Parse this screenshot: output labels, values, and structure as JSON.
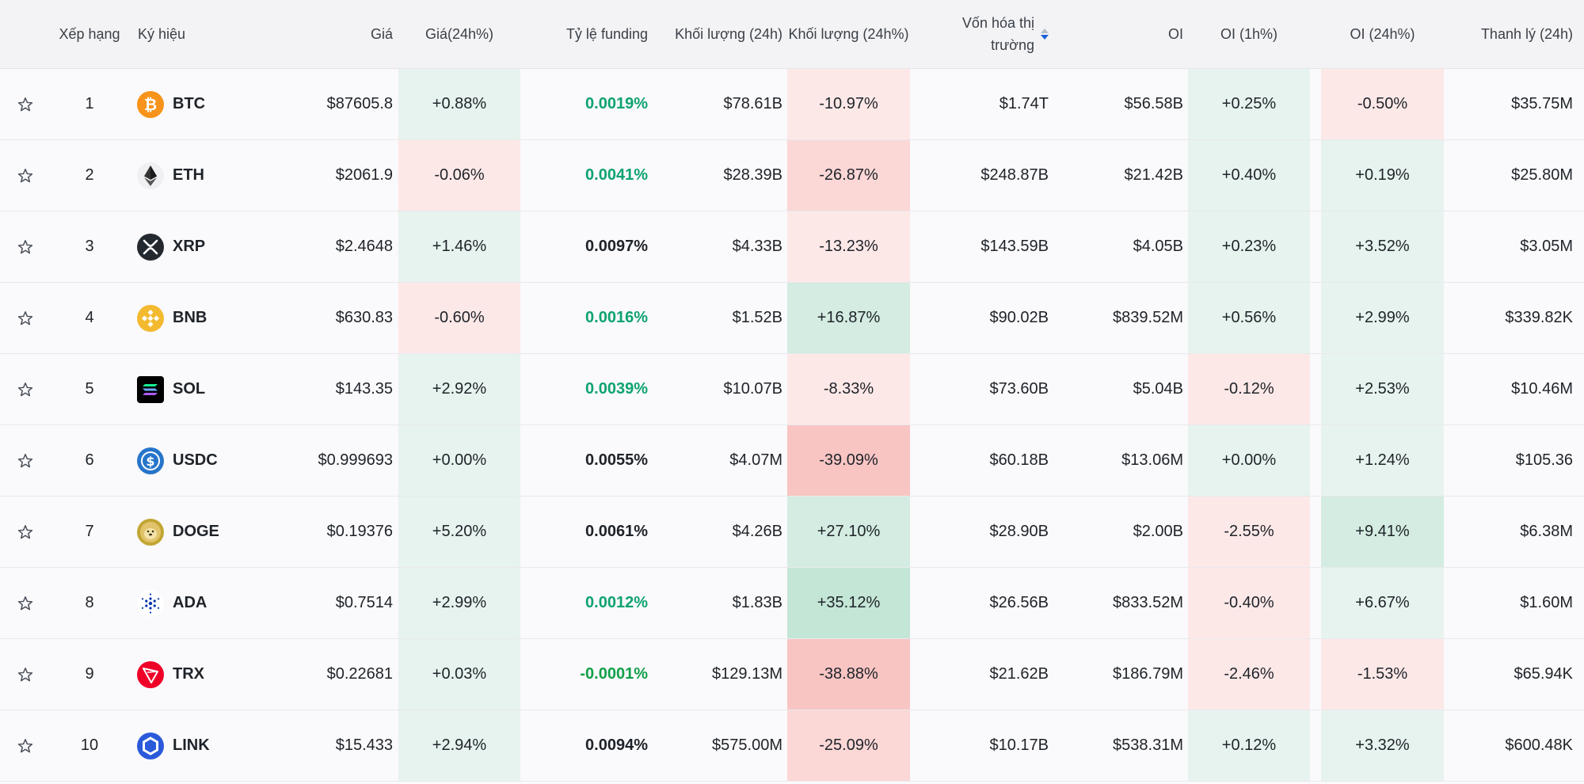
{
  "header": {
    "rank": "Xếp hạng",
    "symbol": "Ký hiệu",
    "price": "Giá",
    "price_change": "Giá(24h%)",
    "funding": "Tỷ lệ funding",
    "volume": "Khối lượng (24h)",
    "volume_change": "Khối lượng (24h%)",
    "market_cap_line1": "Vốn hóa thị",
    "market_cap_line2": "trường",
    "oi": "OI",
    "oi_1h": "OI (1h%)",
    "oi_24h": "OI (24h%)",
    "liquidation": "Thanh lý (24h)"
  },
  "colors": {
    "green_light": "#e7f3ee",
    "green_mid": "#d4ece1",
    "green_strong": "#c4e6d6",
    "red_light": "#fde8e8",
    "red_mid": "#fbd7d6",
    "red_strong": "#f8c5c3",
    "funding_green": "#0ea371",
    "sort_active": "#1c60d8"
  },
  "rows": [
    {
      "rank": "1",
      "symbol": "BTC",
      "icon": "bitcoin-icon",
      "price": "$87605.8",
      "price_change": "+0.88%",
      "price_change_tone": "green_light",
      "funding": "0.0019%",
      "funding_tone": "green",
      "volume": "$78.61B",
      "volume_change": "-10.97%",
      "volume_change_tone": "red_light",
      "market_cap": "$1.74T",
      "oi": "$56.58B",
      "oi_1h": "+0.25%",
      "oi_1h_tone": "green_light",
      "oi_24h": "-0.50%",
      "oi_24h_tone": "red_light",
      "liquidation": "$35.75M"
    },
    {
      "rank": "2",
      "symbol": "ETH",
      "icon": "ethereum-icon",
      "price": "$2061.9",
      "price_change": "-0.06%",
      "price_change_tone": "red_light",
      "funding": "0.0041%",
      "funding_tone": "green",
      "volume": "$28.39B",
      "volume_change": "-26.87%",
      "volume_change_tone": "red_mid",
      "market_cap": "$248.87B",
      "oi": "$21.42B",
      "oi_1h": "+0.40%",
      "oi_1h_tone": "green_light",
      "oi_24h": "+0.19%",
      "oi_24h_tone": "green_light",
      "liquidation": "$25.80M"
    },
    {
      "rank": "3",
      "symbol": "XRP",
      "icon": "xrp-icon",
      "price": "$2.4648",
      "price_change": "+1.46%",
      "price_change_tone": "green_light",
      "funding": "0.0097%",
      "funding_tone": "dark",
      "volume": "$4.33B",
      "volume_change": "-13.23%",
      "volume_change_tone": "red_light",
      "market_cap": "$143.59B",
      "oi": "$4.05B",
      "oi_1h": "+0.23%",
      "oi_1h_tone": "green_light",
      "oi_24h": "+3.52%",
      "oi_24h_tone": "green_light",
      "liquidation": "$3.05M"
    },
    {
      "rank": "4",
      "symbol": "BNB",
      "icon": "bnb-icon",
      "price": "$630.83",
      "price_change": "-0.60%",
      "price_change_tone": "red_light",
      "funding": "0.0016%",
      "funding_tone": "green",
      "volume": "$1.52B",
      "volume_change": "+16.87%",
      "volume_change_tone": "green_mid",
      "market_cap": "$90.02B",
      "oi": "$839.52M",
      "oi_1h": "+0.56%",
      "oi_1h_tone": "green_light",
      "oi_24h": "+2.99%",
      "oi_24h_tone": "green_light",
      "liquidation": "$339.82K"
    },
    {
      "rank": "5",
      "symbol": "SOL",
      "icon": "solana-icon",
      "price": "$143.35",
      "price_change": "+2.92%",
      "price_change_tone": "green_light",
      "funding": "0.0039%",
      "funding_tone": "green",
      "volume": "$10.07B",
      "volume_change": "-8.33%",
      "volume_change_tone": "red_light",
      "market_cap": "$73.60B",
      "oi": "$5.04B",
      "oi_1h": "-0.12%",
      "oi_1h_tone": "red_light",
      "oi_24h": "+2.53%",
      "oi_24h_tone": "green_light",
      "liquidation": "$10.46M"
    },
    {
      "rank": "6",
      "symbol": "USDC",
      "icon": "usdc-icon",
      "price": "$0.999693",
      "price_change": "+0.00%",
      "price_change_tone": "green_light",
      "funding": "0.0055%",
      "funding_tone": "dark",
      "volume": "$4.07M",
      "volume_change": "-39.09%",
      "volume_change_tone": "red_strong",
      "market_cap": "$60.18B",
      "oi": "$13.06M",
      "oi_1h": "+0.00%",
      "oi_1h_tone": "green_light",
      "oi_24h": "+1.24%",
      "oi_24h_tone": "green_light",
      "liquidation": "$105.36"
    },
    {
      "rank": "7",
      "symbol": "DOGE",
      "icon": "dogecoin-icon",
      "price": "$0.19376",
      "price_change": "+5.20%",
      "price_change_tone": "green_light",
      "funding": "0.0061%",
      "funding_tone": "dark",
      "volume": "$4.26B",
      "volume_change": "+27.10%",
      "volume_change_tone": "green_mid",
      "market_cap": "$28.90B",
      "oi": "$2.00B",
      "oi_1h": "-2.55%",
      "oi_1h_tone": "red_light",
      "oi_24h": "+9.41%",
      "oi_24h_tone": "green_mid",
      "liquidation": "$6.38M"
    },
    {
      "rank": "8",
      "symbol": "ADA",
      "icon": "cardano-icon",
      "price": "$0.7514",
      "price_change": "+2.99%",
      "price_change_tone": "green_light",
      "funding": "0.0012%",
      "funding_tone": "green",
      "volume": "$1.83B",
      "volume_change": "+35.12%",
      "volume_change_tone": "green_strong",
      "market_cap": "$26.56B",
      "oi": "$833.52M",
      "oi_1h": "-0.40%",
      "oi_1h_tone": "red_light",
      "oi_24h": "+6.67%",
      "oi_24h_tone": "green_light",
      "liquidation": "$1.60M"
    },
    {
      "rank": "9",
      "symbol": "TRX",
      "icon": "tron-icon",
      "price": "$0.22681",
      "price_change": "+0.03%",
      "price_change_tone": "green_light",
      "funding": "-0.0001%",
      "funding_tone": "neg",
      "volume": "$129.13M",
      "volume_change": "-38.88%",
      "volume_change_tone": "red_strong",
      "market_cap": "$21.62B",
      "oi": "$186.79M",
      "oi_1h": "-2.46%",
      "oi_1h_tone": "red_light",
      "oi_24h": "-1.53%",
      "oi_24h_tone": "red_light",
      "liquidation": "$65.94K"
    },
    {
      "rank": "10",
      "symbol": "LINK",
      "icon": "chainlink-icon",
      "price": "$15.433",
      "price_change": "+2.94%",
      "price_change_tone": "green_light",
      "funding": "0.0094%",
      "funding_tone": "dark",
      "volume": "$575.00M",
      "volume_change": "-25.09%",
      "volume_change_tone": "red_mid",
      "market_cap": "$10.17B",
      "oi": "$538.31M",
      "oi_1h": "+0.12%",
      "oi_1h_tone": "green_light",
      "oi_24h": "+3.32%",
      "oi_24h_tone": "green_light",
      "liquidation": "$600.48K"
    }
  ]
}
